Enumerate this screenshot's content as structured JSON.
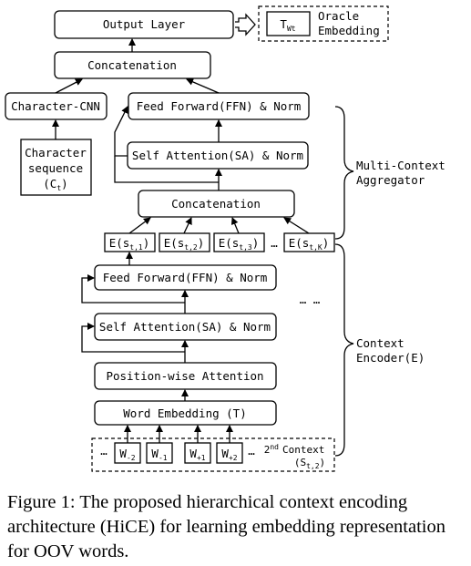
{
  "diagram": {
    "output_layer": "Output Layer",
    "oracle_symbol": "T",
    "oracle_subscript": "Wt",
    "oracle_line1": "Oracle",
    "oracle_line2": "Embedding",
    "concat_top": "Concatenation",
    "char_cnn": "Character-CNN",
    "char_seq_line1": "Character",
    "char_seq_line2": "sequence",
    "char_seq_var": "(C",
    "char_seq_sub": "t",
    "char_seq_close": ")",
    "ffn_top": "Feed Forward(FFN) & Norm",
    "sa_top": "Self Attention(SA) & Norm",
    "concat_mid": "Concatenation",
    "e_prefix": "E(s",
    "e_subs": [
      "t,1",
      "t,2",
      "t,3",
      "t,K"
    ],
    "e_suffix": ")",
    "ellipsis": "…",
    "ffn_bottom": "Feed Forward(FFN) & Norm",
    "dots": "… …",
    "sa_bottom": "Self Attention(SA) & Norm",
    "pos_attn": "Position-wise Attention",
    "word_emb": "Word Embedding (T)",
    "words": [
      {
        "base": "W",
        "sub": "-2"
      },
      {
        "base": "W",
        "sub": "-1"
      },
      {
        "base": "W",
        "sub": "+1"
      },
      {
        "base": "W",
        "sub": "+2"
      }
    ],
    "context_ord": "2",
    "context_sup": "nd",
    "context_label": "Context",
    "context_var": "(S",
    "context_var_sub": "t,2",
    "context_var_close": ")",
    "mca_line1": "Multi-Context",
    "mca_line2": "Aggregator",
    "ce_line1": "Context",
    "ce_line2": "Encoder(E)"
  },
  "caption": "Figure 1: The proposed hierarchical context encoding architecture (HiCE) for learning embedding representation for OOV words."
}
